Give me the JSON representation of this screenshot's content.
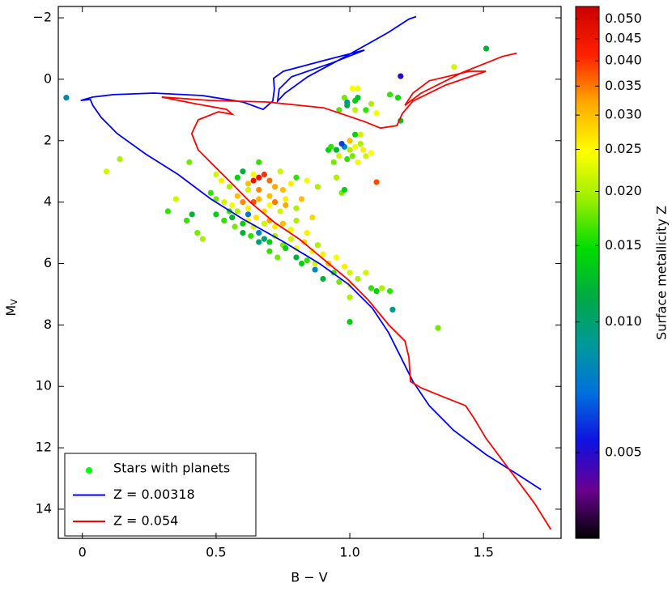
{
  "chart_data": {
    "type": "scatter",
    "xlabel": "B − V",
    "ylabel": "M",
    "ylabel_sub": "V",
    "xlim": [
      -0.09,
      1.79
    ],
    "ylim": [
      -2.37,
      14.95
    ],
    "y_inverted": true,
    "xticks": [
      0,
      0.5,
      {
        "value": 1.0,
        "label": "1.0"
      },
      1.5
    ],
    "yticks": [
      {
        "value": -2,
        "label": "−2"
      },
      0,
      2,
      4,
      6,
      8,
      10,
      12,
      14
    ],
    "legend": "lower left",
    "series": [
      {
        "name": "Stars with planets",
        "type": "scatter",
        "color": "#00ff00",
        "x": [
          -0.06,
          0.09,
          0.14,
          0.32,
          0.35,
          0.39,
          0.4,
          0.41,
          0.43,
          0.45,
          1.0,
          1.33,
          1.16,
          1.51,
          1.39,
          1.19,
          1.19,
          1.1,
          1.01,
          1.03,
          0.98,
          1.02,
          1.03,
          0.99,
          1.06,
          1.08,
          1.1,
          1.15,
          1.18,
          1.02,
          0.96,
          1.02,
          1.04,
          0.99,
          0.92,
          0.93,
          0.95,
          0.98,
          1.0,
          1.02,
          1.05,
          0.96,
          0.99,
          1.01,
          1.03,
          1.06,
          1.08,
          0.94,
          0.97,
          1.0,
          1.04,
          0.95,
          0.97,
          0.88,
          0.84,
          0.98,
          0.5,
          0.52,
          0.55,
          0.58,
          0.6,
          0.62,
          0.64,
          0.66,
          0.68,
          0.7,
          0.66,
          0.72,
          0.75,
          0.74,
          0.78,
          0.8,
          0.48,
          0.5,
          0.53,
          0.56,
          0.58,
          0.6,
          0.62,
          0.64,
          0.66,
          0.68,
          0.7,
          0.72,
          0.74,
          0.76,
          0.8,
          0.82,
          0.86,
          0.5,
          0.53,
          0.56,
          0.58,
          0.6,
          0.62,
          0.65,
          0.68,
          0.7,
          0.72,
          0.75,
          0.78,
          0.8,
          0.84,
          0.6,
          0.63,
          0.66,
          0.68,
          0.7,
          0.72,
          0.75,
          0.78,
          0.8,
          0.83,
          0.86,
          0.88,
          0.7,
          0.73,
          0.76,
          0.8,
          0.84,
          0.87,
          0.9,
          0.92,
          0.95,
          0.98,
          1.0,
          0.94,
          0.9,
          0.96,
          1.0,
          1.03,
          1.06,
          1.08,
          1.1,
          1.12,
          1.15,
          1.0,
          0.87,
          0.82,
          0.64,
          0.55,
          0.66,
          0.62,
          0.64,
          0.7,
          0.76,
          0.57,
          0.62,
          0.66
        ],
        "y": [
          0.6,
          3.0,
          2.6,
          4.3,
          3.9,
          4.6,
          2.7,
          4.4,
          5.0,
          5.2,
          7.9,
          8.1,
          7.5,
          -1.0,
          -0.4,
          -0.1,
          1.35,
          3.35,
          0.3,
          0.3,
          0.6,
          0.7,
          0.6,
          0.75,
          1.0,
          0.8,
          1.1,
          0.5,
          0.6,
          1.0,
          1.0,
          1.8,
          1.8,
          0.85,
          2.3,
          2.2,
          2.3,
          2.2,
          2.3,
          2.2,
          2.3,
          2.5,
          2.6,
          2.5,
          2.7,
          2.5,
          2.4,
          2.7,
          2.1,
          2.0,
          2.1,
          3.2,
          3.7,
          3.5,
          3.3,
          3.6,
          3.1,
          3.3,
          3.5,
          3.2,
          3.0,
          3.4,
          3.1,
          2.7,
          3.1,
          3.3,
          3.2,
          3.5,
          3.6,
          3.0,
          3.4,
          3.2,
          3.7,
          3.9,
          4.0,
          4.1,
          3.8,
          4.0,
          4.2,
          4.0,
          3.9,
          4.3,
          4.1,
          4.0,
          4.3,
          4.1,
          4.2,
          3.9,
          4.5,
          4.4,
          4.6,
          4.5,
          4.3,
          4.7,
          4.6,
          4.5,
          4.7,
          4.6,
          4.8,
          4.7,
          4.9,
          4.6,
          5.0,
          5.0,
          5.1,
          5.0,
          5.2,
          5.3,
          5.1,
          5.4,
          5.2,
          5.5,
          5.3,
          5.6,
          5.4,
          5.6,
          5.8,
          5.5,
          5.8,
          5.9,
          6.0,
          5.7,
          6.0,
          5.8,
          6.1,
          6.3,
          6.3,
          6.5,
          6.6,
          6.7,
          6.5,
          6.3,
          6.8,
          6.9,
          6.8,
          6.9,
          7.1,
          6.2,
          6.0,
          4.8,
          4.3,
          3.6,
          3.6,
          3.3,
          3.8,
          3.9,
          4.8,
          4.4,
          5.3
        ],
        "z": [
          0.008,
          0.022,
          0.02,
          0.016,
          0.022,
          0.016,
          0.018,
          0.012,
          0.018,
          0.02,
          0.014,
          0.018,
          0.009,
          0.012,
          0.022,
          0.005,
          0.013,
          0.038,
          0.025,
          0.024,
          0.018,
          0.014,
          0.013,
          0.009,
          0.016,
          0.02,
          0.024,
          0.016,
          0.015,
          0.021,
          0.017,
          0.014,
          0.022,
          0.011,
          0.014,
          0.016,
          0.012,
          0.008,
          0.02,
          0.024,
          0.026,
          0.022,
          0.016,
          0.018,
          0.024,
          0.022,
          0.025,
          0.018,
          0.006,
          0.03,
          0.02,
          0.02,
          0.018,
          0.02,
          0.024,
          0.014,
          0.022,
          0.026,
          0.02,
          0.014,
          0.012,
          0.03,
          0.024,
          0.016,
          0.04,
          0.036,
          0.045,
          0.032,
          0.03,
          0.022,
          0.026,
          0.016,
          0.016,
          0.018,
          0.022,
          0.024,
          0.03,
          0.034,
          0.026,
          0.038,
          0.03,
          0.028,
          0.025,
          0.035,
          0.022,
          0.032,
          0.02,
          0.03,
          0.028,
          0.014,
          0.016,
          0.012,
          0.02,
          0.014,
          0.024,
          0.027,
          0.022,
          0.032,
          0.026,
          0.03,
          0.024,
          0.02,
          0.026,
          0.012,
          0.016,
          0.008,
          0.01,
          0.014,
          0.02,
          0.018,
          0.022,
          0.024,
          0.028,
          0.024,
          0.02,
          0.016,
          0.018,
          0.014,
          0.012,
          0.016,
          0.022,
          0.026,
          0.03,
          0.024,
          0.026,
          0.022,
          0.016,
          0.012,
          0.018,
          0.024,
          0.02,
          0.022,
          0.016,
          0.014,
          0.02,
          0.016,
          0.02,
          0.008,
          0.014,
          0.022,
          0.016,
          0.034,
          0.022,
          0.045,
          0.03,
          0.026,
          0.018,
          0.007,
          0.01
        ]
      },
      {
        "name": "Z = 0.00318",
        "type": "line",
        "color": "#0000ff",
        "x": [
          1.715,
          1.63,
          1.509,
          1.388,
          1.297,
          1.236,
          1.191,
          1.145,
          1.085,
          0.994,
          0.888,
          0.752,
          0.6,
          0.479,
          0.358,
          0.236,
          0.13,
          0.07,
          0.039,
          0.03,
          -0.006,
          0.039,
          0.115,
          0.267,
          0.448,
          0.6,
          0.676,
          0.712,
          0.718,
          0.715,
          0.752,
          0.903,
          1.055,
          0.933,
          0.782,
          0.736,
          0.73,
          0.758,
          0.842,
          0.994,
          1.145,
          1.221,
          1.248
        ],
        "y": [
          13.36,
          12.88,
          12.22,
          11.43,
          10.63,
          9.84,
          9.05,
          8.25,
          7.46,
          6.67,
          6.01,
          5.29,
          4.55,
          3.89,
          3.1,
          2.43,
          1.77,
          1.24,
          0.85,
          0.66,
          0.69,
          0.58,
          0.5,
          0.45,
          0.53,
          0.74,
          0.98,
          0.71,
          0.32,
          -0.03,
          -0.26,
          -0.61,
          -0.95,
          -0.53,
          -0.08,
          0.32,
          0.71,
          0.45,
          -0.08,
          -0.79,
          -1.53,
          -1.96,
          -2.04
        ]
      },
      {
        "name": "Z = 0.054",
        "type": "line",
        "color": "#ff0000",
        "x": [
          1.752,
          1.691,
          1.6,
          1.509,
          1.464,
          1.433,
          1.358,
          1.267,
          1.227,
          1.221,
          1.206,
          1.145,
          1.07,
          0.994,
          0.903,
          0.812,
          0.721,
          0.63,
          0.555,
          0.494,
          0.433,
          0.409,
          0.433,
          0.509,
          0.561,
          0.539,
          0.418,
          0.297,
          0.479,
          0.691,
          0.903,
          1.055,
          1.115,
          1.176,
          1.197,
          1.236,
          1.358,
          1.509,
          1.448,
          1.297,
          1.236,
          1.206,
          1.267,
          1.418,
          1.57,
          1.624
        ],
        "y": [
          14.66,
          13.81,
          12.75,
          11.69,
          11.03,
          10.63,
          10.37,
          10.05,
          9.84,
          9.05,
          8.52,
          7.99,
          7.2,
          6.53,
          5.87,
          5.21,
          4.68,
          4.02,
          3.36,
          2.83,
          2.3,
          1.77,
          1.32,
          1.06,
          1.14,
          0.98,
          0.79,
          0.58,
          0.69,
          0.74,
          0.93,
          1.38,
          1.59,
          1.51,
          1.11,
          0.71,
          0.19,
          -0.26,
          -0.26,
          0.05,
          0.45,
          0.85,
          0.45,
          -0.21,
          -0.74,
          -0.85
        ]
      }
    ],
    "colorbar": {
      "label": "Surface metallicity  Z",
      "log": true,
      "lim": [
        0.00317,
        0.0534
      ],
      "ticks": [
        0.005,
        {
          "value": 0.01,
          "label": "0.010"
        },
        0.015,
        {
          "value": 0.02,
          "label": "0.020"
        },
        0.025,
        {
          "value": 0.03,
          "label": "0.030"
        },
        0.035,
        {
          "value": 0.04,
          "label": "0.040"
        },
        0.045,
        {
          "value": 0.05,
          "label": "0.050"
        }
      ],
      "colormap": [
        "#000000",
        "#6a0090",
        "#1010e0",
        "#0070dd",
        "#009999",
        "#00aa44",
        "#00dd00",
        "#99ee00",
        "#ffff00",
        "#ffaa00",
        "#ff2000",
        "#cc0000"
      ]
    }
  }
}
